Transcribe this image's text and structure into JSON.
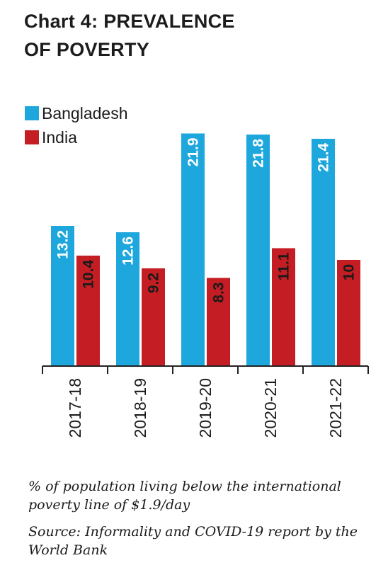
{
  "header": {
    "title_line1": "Chart 4: PREVALENCE",
    "title_line2": "OF POVERTY"
  },
  "chart_data": {
    "type": "bar",
    "title": "Chart 4: PREVALENCE OF POVERTY",
    "categories": [
      "2017-18",
      "2018-19",
      "2019-20",
      "2020-21",
      "2021-22"
    ],
    "series": [
      {
        "name": "Bangladesh",
        "color": "#1ea7dd",
        "label_color": "#ffffff",
        "values": [
          13.2,
          12.6,
          21.9,
          21.8,
          21.4
        ],
        "value_labels": [
          "13.2",
          "12.6",
          "21.9",
          "21.8",
          "21.4"
        ]
      },
      {
        "name": "India",
        "color": "#c41e24",
        "label_color": "#1a1a1a",
        "values": [
          10.4,
          9.2,
          8.3,
          11.1,
          10
        ],
        "value_labels": [
          "10.4",
          "9.2",
          "8.3",
          "11.1",
          "10"
        ]
      }
    ],
    "ylim": [
      0,
      24
    ],
    "legend_position": "top-left",
    "grid": false,
    "value_labels_rotated": true,
    "tick_labels_rotated": true
  },
  "notes": {
    "definition": "% of population living below the international poverty line of $1.9/day",
    "source": "Source: Informality and COVID-19 report by the World Bank"
  }
}
